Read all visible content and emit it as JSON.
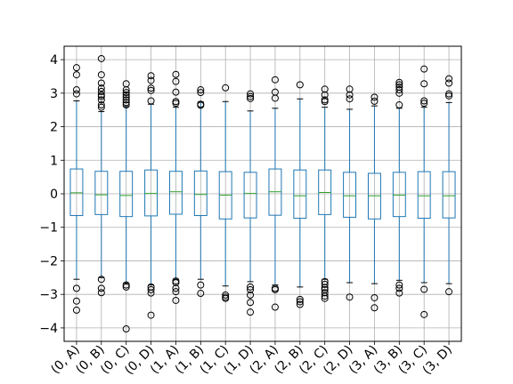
{
  "chart_data": {
    "type": "box",
    "title": "",
    "xlabel": "",
    "ylabel": "",
    "ylim": [
      -4.4,
      4.4
    ],
    "yticks": [
      4,
      3,
      2,
      1,
      0,
      -1,
      -2,
      -3,
      -4
    ],
    "ytick_labels": [
      "4",
      "3",
      "2",
      "1",
      "0",
      "−1",
      "−2",
      "−3",
      "−4"
    ],
    "grid": true,
    "colors": {
      "box": "#1f77b4",
      "median": "#2ca02c",
      "whisker": "#1f77b4",
      "flier": "#000000",
      "grid": "#b0b0b0"
    },
    "categories": [
      "(0, A)",
      "(0, B)",
      "(0, C)",
      "(0, D)",
      "(1, A)",
      "(1, B)",
      "(1, C)",
      "(1, D)",
      "(2, A)",
      "(2, B)",
      "(2, C)",
      "(2, D)",
      "(3, A)",
      "(3, B)",
      "(3, C)",
      "(3, D)"
    ],
    "boxes": [
      {
        "q1": -0.65,
        "median": 0.03,
        "q3": 0.74,
        "whislo": -2.55,
        "whishi": 2.77,
        "fliers": [
          3.76,
          3.55,
          3.1,
          2.98,
          -2.82,
          -3.2,
          -3.47
        ]
      },
      {
        "q1": -0.62,
        "median": -0.03,
        "q3": 0.67,
        "whislo": -2.5,
        "whishi": 2.45,
        "fliers": [
          4.03,
          3.55,
          3.3,
          3.15,
          3.05,
          2.95,
          2.9,
          2.8,
          2.65,
          2.58,
          -2.55,
          -2.82,
          -2.95
        ]
      },
      {
        "q1": -0.68,
        "median": -0.05,
        "q3": 0.67,
        "whislo": -2.66,
        "whishi": 2.6,
        "fliers": [
          3.28,
          3.1,
          3.02,
          2.95,
          2.88,
          2.8,
          2.72,
          2.65,
          -2.72,
          -2.78,
          -4.03
        ]
      },
      {
        "q1": -0.66,
        "median": 0.01,
        "q3": 0.71,
        "whislo": -2.72,
        "whishi": 2.67,
        "fliers": [
          3.52,
          3.38,
          3.15,
          3.08,
          2.77,
          -2.78,
          -2.86,
          -2.96,
          -3.62
        ]
      },
      {
        "q1": -0.61,
        "median": 0.06,
        "q3": 0.67,
        "whislo": -2.55,
        "whishi": 2.58,
        "fliers": [
          3.56,
          3.35,
          3.03,
          2.75,
          2.7,
          -2.6,
          -2.65,
          -2.82,
          -2.92,
          -3.18
        ]
      },
      {
        "q1": -0.65,
        "median": -0.02,
        "q3": 0.68,
        "whislo": -2.55,
        "whishi": 2.74,
        "fliers": [
          3.1,
          3.02,
          2.67,
          2.64,
          -2.72,
          -2.97
        ]
      },
      {
        "q1": -0.75,
        "median": -0.04,
        "q3": 0.66,
        "whislo": -2.75,
        "whishi": 2.75,
        "fliers": [
          3.16,
          -3.02,
          -3.08,
          -3.12
        ]
      },
      {
        "q1": -0.72,
        "median": 0.01,
        "q3": 0.64,
        "whislo": -2.62,
        "whishi": 2.47,
        "fliers": [
          2.98,
          2.9,
          2.84,
          -2.78,
          -2.86,
          -3.02,
          -3.24,
          -3.53
        ]
      },
      {
        "q1": -0.64,
        "median": 0.06,
        "q3": 0.74,
        "whislo": -2.72,
        "whishi": 2.55,
        "fliers": [
          3.4,
          3.03,
          2.85,
          -2.82,
          -2.86,
          -3.38
        ]
      },
      {
        "q1": -0.73,
        "median": -0.06,
        "q3": 0.71,
        "whislo": -2.78,
        "whishi": 2.83,
        "fliers": [
          3.25,
          -3.15,
          -3.22,
          -3.3
        ]
      },
      {
        "q1": -0.62,
        "median": 0.04,
        "q3": 0.71,
        "whislo": -2.55,
        "whishi": 2.58,
        "fliers": [
          3.12,
          2.95,
          2.8,
          2.75,
          -2.62,
          -2.7,
          -2.8,
          -2.86,
          -2.95,
          -3.05,
          -3.12
        ]
      },
      {
        "q1": -0.7,
        "median": -0.06,
        "q3": 0.64,
        "whislo": -2.65,
        "whishi": 2.52,
        "fliers": [
          3.12,
          2.95,
          2.83,
          -3.08
        ]
      },
      {
        "q1": -0.75,
        "median": -0.06,
        "q3": 0.61,
        "whislo": -2.68,
        "whishi": 2.62,
        "fliers": [
          2.88,
          2.76,
          -3.1,
          -3.4
        ]
      },
      {
        "q1": -0.68,
        "median": -0.04,
        "q3": 0.64,
        "whislo": -2.58,
        "whishi": 2.55,
        "fliers": [
          3.32,
          3.25,
          3.18,
          3.1,
          3.0,
          2.65,
          -2.72,
          -2.82,
          -2.96
        ]
      },
      {
        "q1": -0.73,
        "median": -0.06,
        "q3": 0.66,
        "whislo": -2.65,
        "whishi": 2.58,
        "fliers": [
          3.72,
          3.28,
          2.77,
          2.7,
          -2.85,
          -3.6
        ]
      },
      {
        "q1": -0.72,
        "median": -0.06,
        "q3": 0.66,
        "whislo": -2.68,
        "whishi": 2.72,
        "fliers": [
          3.43,
          3.3,
          2.98,
          2.92,
          -2.92
        ]
      }
    ]
  }
}
